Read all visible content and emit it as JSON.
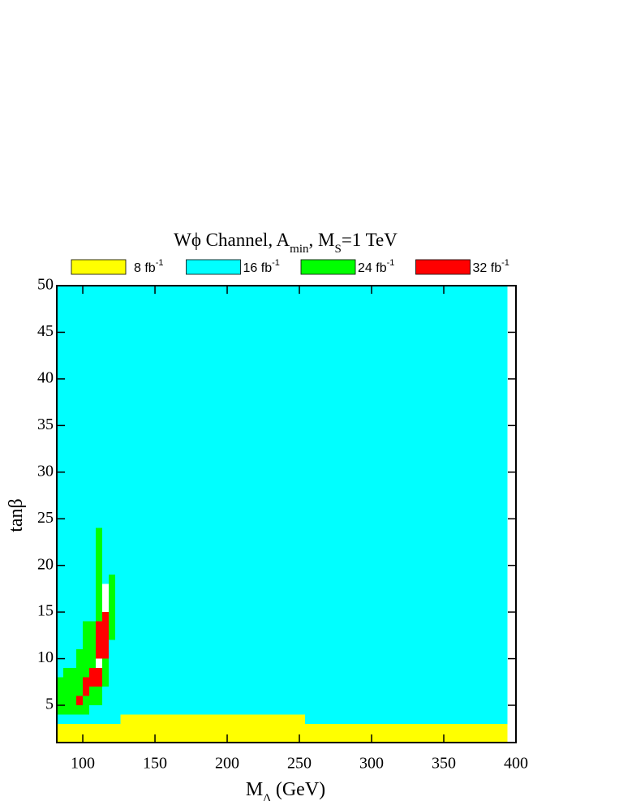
{
  "chart_data": {
    "type": "region-map",
    "title": [
      "Wϕ Channel,  A",
      "min",
      ", M",
      "S",
      "=1 TeV"
    ],
    "x_label": [
      "M",
      "Δ",
      " (GeV)"
    ],
    "y_label": "tanβ",
    "xlim": [
      82,
      400
    ],
    "ylim": [
      1,
      50
    ],
    "xticks": [
      100,
      150,
      200,
      250,
      300,
      350,
      400
    ],
    "yticks": [
      5,
      10,
      15,
      20,
      25,
      30,
      35,
      40,
      45,
      50
    ],
    "levels": [
      {
        "name": "8 fb",
        "exponent": "-1",
        "color": "#ffff00"
      },
      {
        "name": "16 fb",
        "exponent": "-1",
        "color": "#00ffff"
      },
      {
        "name": "24 fb",
        "exponent": "-1",
        "color": "#00ff00"
      },
      {
        "name": "32 fb",
        "exponent": "-1",
        "color": "#ff0000"
      }
    ],
    "cells": [
      {
        "x": [
          82,
          394
        ],
        "y": [
          1,
          50
        ],
        "level": 1
      },
      {
        "x": [
          82,
          394
        ],
        "y": [
          1,
          3
        ],
        "level": 0
      },
      {
        "x": [
          126,
          254
        ],
        "y": [
          3,
          4
        ],
        "level": 0
      },
      {
        "x": [
          82,
          86.5
        ],
        "y": [
          4,
          8
        ],
        "level": 2
      },
      {
        "x": [
          86.5,
          91
        ],
        "y": [
          4,
          9
        ],
        "level": 2
      },
      {
        "x": [
          91,
          95.5
        ],
        "y": [
          4,
          9
        ],
        "level": 2
      },
      {
        "x": [
          95.5,
          100
        ],
        "y": [
          4,
          11
        ],
        "level": 2
      },
      {
        "x": [
          95.5,
          100
        ],
        "y": [
          5,
          6
        ],
        "level": 3
      },
      {
        "x": [
          100,
          104.5
        ],
        "y": [
          4,
          14
        ],
        "level": 2
      },
      {
        "x": [
          100,
          104.5
        ],
        "y": [
          6,
          8
        ],
        "level": 3
      },
      {
        "x": [
          104.5,
          109
        ],
        "y": [
          5,
          14
        ],
        "level": 2
      },
      {
        "x": [
          104.5,
          109
        ],
        "y": [
          7,
          9
        ],
        "level": 3
      },
      {
        "x": [
          109,
          113.5
        ],
        "y": [
          5,
          24
        ],
        "level": 2
      },
      {
        "x": [
          109,
          113.5
        ],
        "y": [
          7,
          9
        ],
        "level": 3
      },
      {
        "x": [
          109,
          113.5
        ],
        "y": [
          9,
          10
        ],
        "level": null
      },
      {
        "x": [
          109,
          113.5
        ],
        "y": [
          10,
          14
        ],
        "level": 3
      },
      {
        "x": [
          113.5,
          118
        ],
        "y": [
          7,
          18
        ],
        "level": 2
      },
      {
        "x": [
          113.5,
          118
        ],
        "y": [
          10,
          15
        ],
        "level": 3
      },
      {
        "x": [
          113.5,
          118
        ],
        "y": [
          15,
          18
        ],
        "level": null
      },
      {
        "x": [
          118,
          122.5
        ],
        "y": [
          12,
          19
        ],
        "level": 2
      }
    ]
  }
}
